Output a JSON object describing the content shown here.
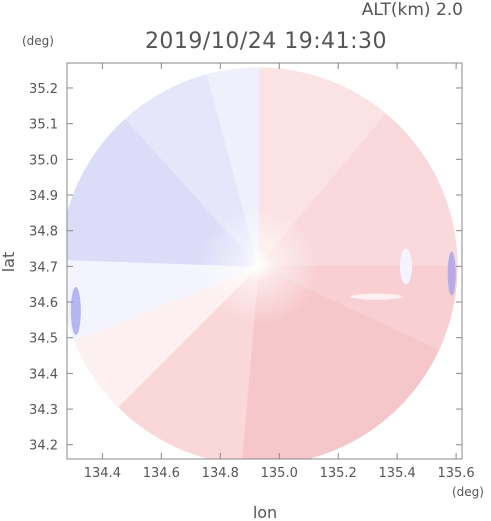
{
  "header": {
    "altitude": "ALT(km) 2.0",
    "datetime": "2019/10/24 19:41:30"
  },
  "chart_data": {
    "type": "heatmap",
    "title": "2019/10/24 19:41:30",
    "subtitle": "ALT(km) 2.0",
    "xlabel": "lon",
    "ylabel": "lat",
    "x_unit": "(deg)",
    "y_unit": "(deg)",
    "xlim": [
      134.28,
      135.62
    ],
    "ylim": [
      34.16,
      35.27
    ],
    "xticks": [
      134.4,
      134.6,
      134.8,
      135.0,
      135.2,
      135.4,
      135.6
    ],
    "xtick_labels": [
      "134.4",
      "134.6",
      "134.8",
      "135.0",
      "135.2",
      "135.4",
      "135.6"
    ],
    "yticks": [
      34.2,
      34.3,
      34.4,
      34.5,
      34.6,
      34.7,
      34.8,
      34.9,
      35.0,
      35.1,
      35.2
    ],
    "ytick_labels": [
      "34.2",
      "34.3",
      "34.4",
      "34.5",
      "34.6",
      "34.7",
      "34.8",
      "34.9",
      "35.0",
      "35.1",
      "35.2"
    ],
    "radar_center": {
      "lon": 134.93,
      "lat": 34.7
    },
    "radar_range_deg_lon": 0.675,
    "colors": {
      "positive": "#f08f92",
      "negative": "#8c8cf0",
      "zero": "#ffffff",
      "axis": "#888888",
      "text": "#555555"
    },
    "grid": false,
    "legend": "none"
  }
}
